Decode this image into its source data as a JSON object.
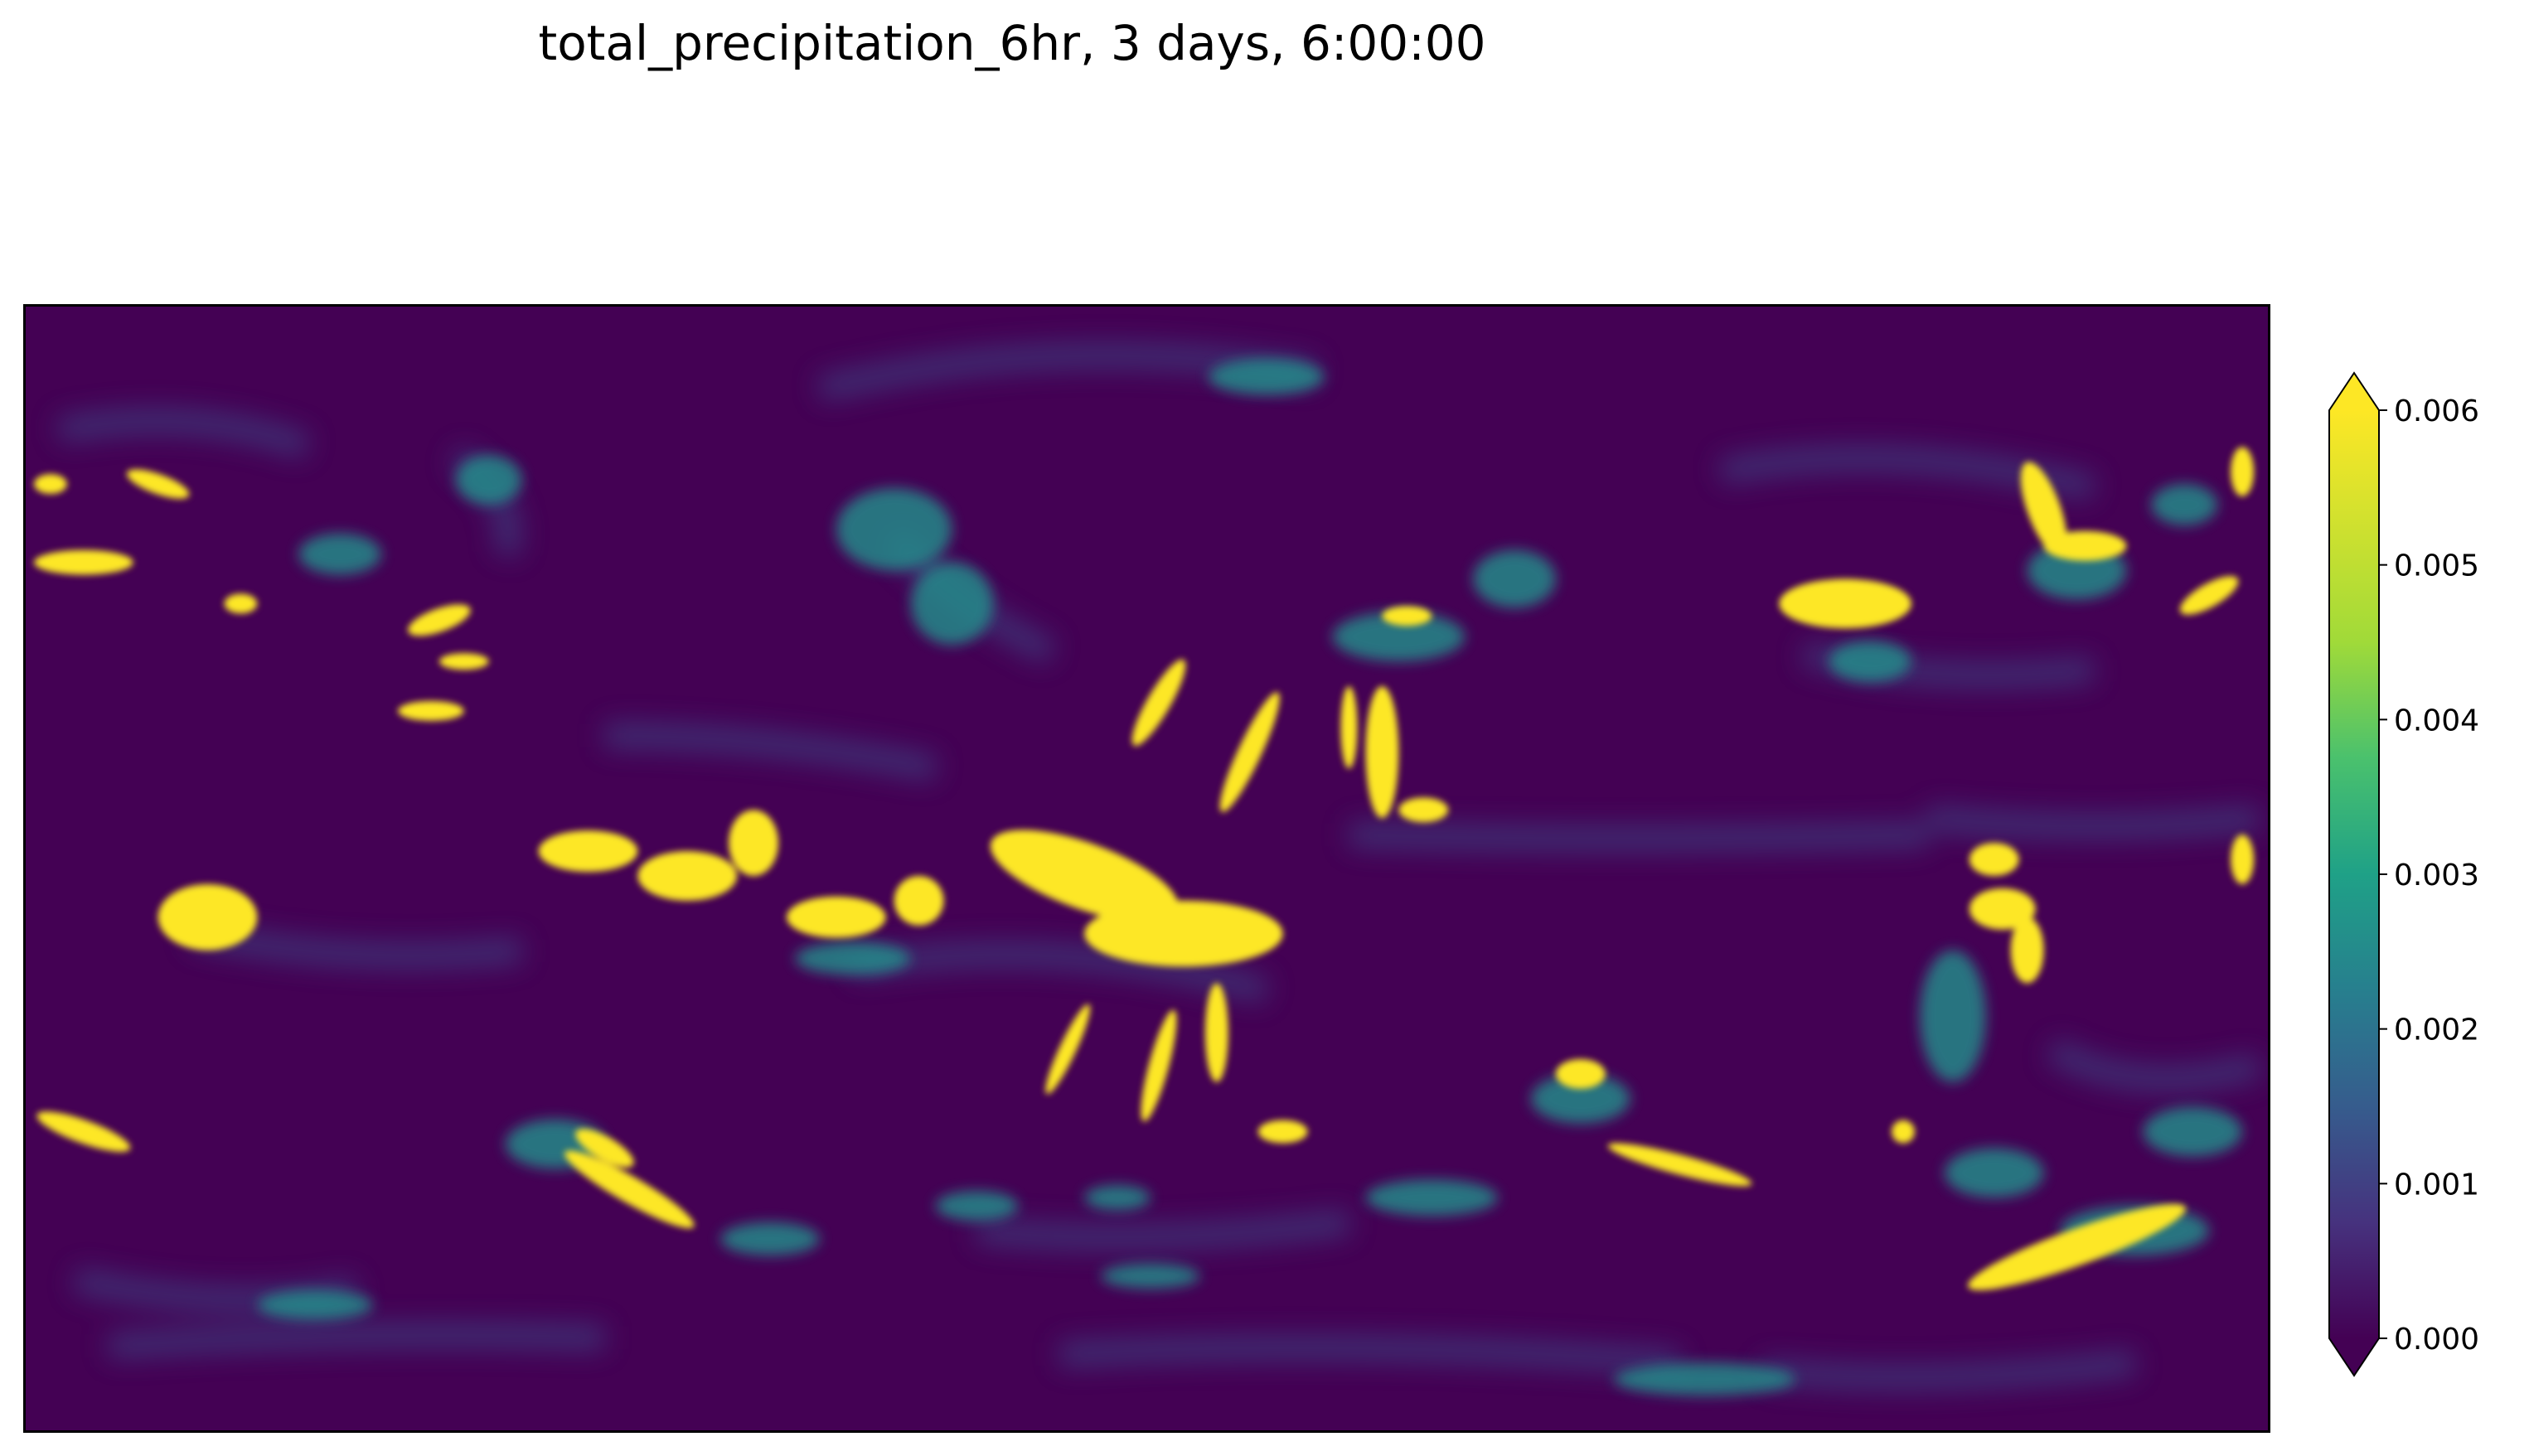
{
  "chart_data": {
    "type": "heatmap",
    "title": "total_precipitation_6hr, 3 days, 6:00:00",
    "xlabel": "",
    "ylabel": "",
    "colormap": "viridis",
    "colorbar": {
      "min": 0.0,
      "max": 0.006,
      "extend": "both",
      "ticks": [
        0.0,
        0.001,
        0.002,
        0.003,
        0.004,
        0.005,
        0.006
      ],
      "tick_labels": [
        "0.000",
        "0.001",
        "0.002",
        "0.003",
        "0.004",
        "0.005",
        "0.006"
      ]
    },
    "colors": {
      "min": "#440154",
      "mid": "#21918c",
      "max": "#fde725"
    }
  }
}
